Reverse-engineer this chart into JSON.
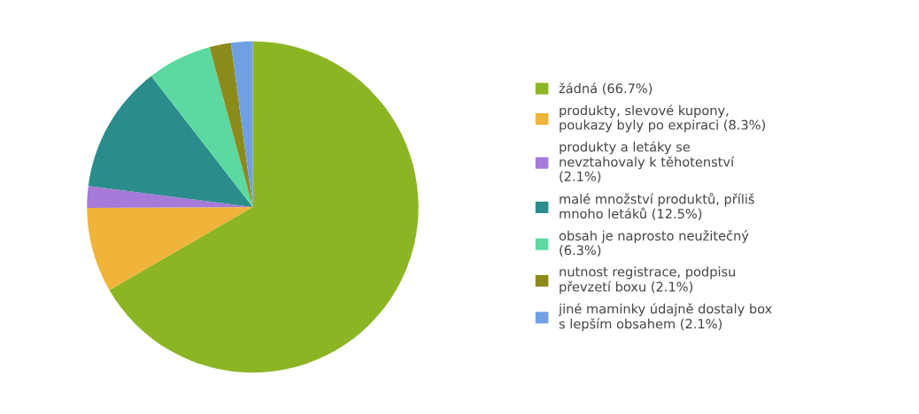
{
  "chart_data": {
    "type": "pie",
    "categories": [
      "žádná (66.7%)",
      "produkty, slevové kupony, poukazy byly po expiraci (8.3%)",
      "produkty a letáky se nevztahovaly k těhotenství (2.1%)",
      "malé množství produktů, příliš mnoho letáků (12.5%)",
      "obsah je naprosto neužitečný (6.3%)",
      "nutnost registrace, podpisu převzetí boxu (2.1%)",
      "jiné maminky údajně dostaly box s lepším obsahem (2.1%)"
    ],
    "values": [
      66.7,
      8.3,
      2.1,
      12.5,
      6.3,
      2.1,
      2.1
    ],
    "colors": [
      "#8cb523",
      "#f0b43a",
      "#a57ad8",
      "#2b8c8c",
      "#5cd9a0",
      "#8c8a1a",
      "#6fa0e2"
    ],
    "legend": "right"
  }
}
